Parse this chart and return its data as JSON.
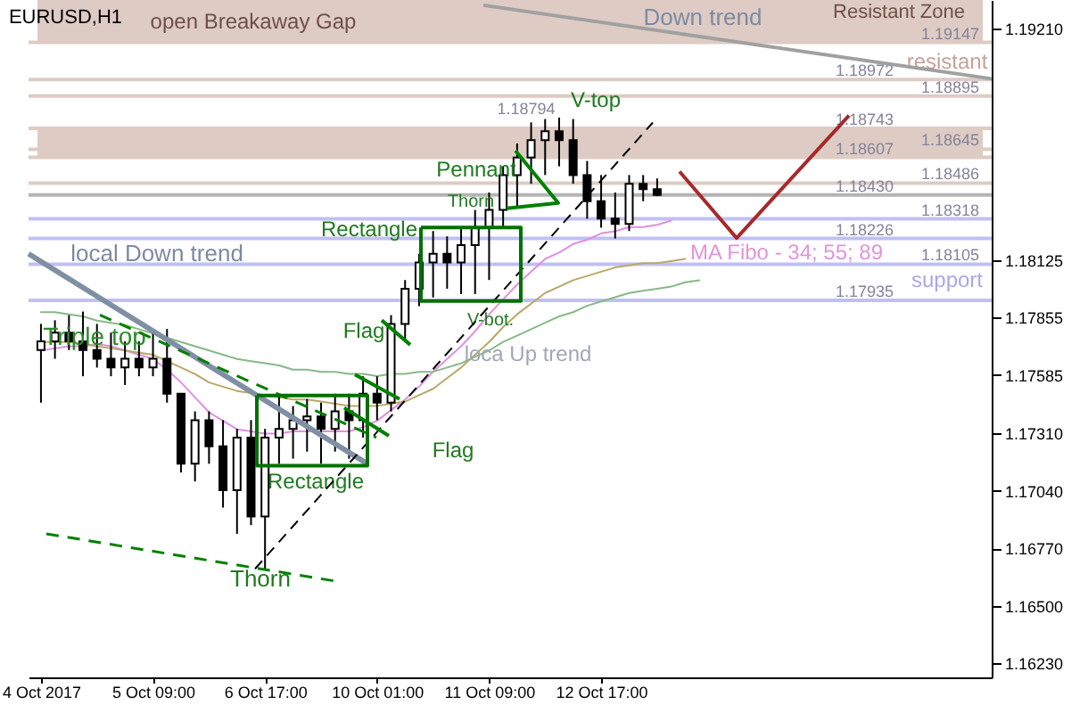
{
  "chart_data": {
    "type": "candlestick",
    "title": "EURUSD,H1",
    "color": "#000000",
    "categories": [
      "4 Oct 2017",
      null,
      null,
      null,
      null,
      null,
      null,
      null,
      "5 Oct 09:00",
      null,
      null,
      null,
      null,
      null,
      null,
      null,
      "6 Oct 17:00",
      null,
      null,
      null,
      null,
      null,
      null,
      null,
      "10 Oct 01:00",
      null,
      null,
      null,
      null,
      null,
      null,
      null,
      "11 Oct 09:00",
      null,
      null,
      null,
      null,
      null,
      null,
      null,
      "12 Oct 17:00",
      null,
      null,
      null,
      null,
      null,
      null,
      null,
      null,
      null,
      null,
      null,
      null,
      null,
      null,
      null,
      null,
      null,
      null,
      null,
      null,
      null,
      null,
      null,
      null,
      null,
      null,
      null
    ],
    "ylim": [
      1.16165,
      1.19346
    ],
    "yticks": [
      {
        "value": 1.1623,
        "label": "1.16230"
      },
      {
        "value": 1.165,
        "label": "1.16500"
      },
      {
        "value": 1.1677,
        "label": "1.16770"
      },
      {
        "value": 1.1704,
        "label": "1.17040"
      },
      {
        "value": 1.1731,
        "label": "1.17310"
      },
      {
        "value": 1.17585,
        "label": "1.17585"
      },
      {
        "value": 1.17855,
        "label": "1.17855"
      },
      {
        "value": 1.18125,
        "label": "1.18125"
      },
      {
        "value": 1.1921,
        "label": "1.19210"
      }
    ],
    "ohlc": [
      [
        1.17702,
        1.17825,
        1.17455,
        1.17743
      ],
      [
        1.17743,
        1.17842,
        1.17661,
        1.17784
      ],
      [
        1.17784,
        1.17866,
        1.17702,
        1.17743
      ],
      [
        1.17743,
        1.17883,
        1.17579,
        1.17702
      ],
      [
        1.17702,
        1.17825,
        1.1762,
        1.17661
      ],
      [
        1.17661,
        1.17784,
        1.17579,
        1.1762
      ],
      [
        1.1762,
        1.17743,
        1.17538,
        1.17661
      ],
      [
        1.17661,
        1.17743,
        1.17579,
        1.1762
      ],
      [
        1.1762,
        1.17784,
        1.17579,
        1.17661
      ],
      [
        1.17661,
        1.17801,
        1.17455,
        1.17497
      ],
      [
        1.17497,
        1.17497,
        1.17127,
        1.17168
      ],
      [
        1.17168,
        1.17414,
        1.17085,
        1.17373
      ],
      [
        1.17373,
        1.17414,
        1.17168,
        1.1725
      ],
      [
        1.1725,
        1.17373,
        1.16962,
        1.17044
      ],
      [
        1.17044,
        1.17332,
        1.16839,
        1.17291
      ],
      [
        1.17291,
        1.17373,
        1.1688,
        1.16921
      ],
      [
        1.16921,
        1.17332,
        1.16674,
        1.17291
      ],
      [
        1.17291,
        1.17497,
        1.17168,
        1.17332
      ],
      [
        1.17332,
        1.17439,
        1.17192,
        1.17373
      ],
      [
        1.17373,
        1.17472,
        1.17225,
        1.1739
      ],
      [
        1.1739,
        1.17455,
        1.17168,
        1.17332
      ],
      [
        1.17332,
        1.17497,
        1.17225,
        1.17414
      ],
      [
        1.17414,
        1.17497,
        1.17192,
        1.17373
      ],
      [
        1.17373,
        1.17579,
        1.17291,
        1.17497
      ],
      [
        1.17497,
        1.17579,
        1.17373,
        1.17455
      ],
      [
        1.17455,
        1.17866,
        1.17414,
        1.17825
      ],
      [
        1.17825,
        1.18031,
        1.17743,
        1.1799
      ],
      [
        1.1799,
        1.18154,
        1.17908,
        1.18113
      ],
      [
        1.18113,
        1.18261,
        1.17949,
        1.18154
      ],
      [
        1.18154,
        1.18236,
        1.1799,
        1.18113
      ],
      [
        1.18113,
        1.18277,
        1.17965,
        1.18195
      ],
      [
        1.18195,
        1.1836,
        1.17965,
        1.18277
      ],
      [
        1.18277,
        1.18442,
        1.18031,
        1.1836
      ],
      [
        1.1836,
        1.18565,
        1.18277,
        1.18524
      ],
      [
        1.18524,
        1.18672,
        1.18376,
        1.18606
      ],
      [
        1.18606,
        1.18771,
        1.18483,
        1.18688
      ],
      [
        1.18688,
        1.18787,
        1.18524,
        1.1873
      ],
      [
        1.1873,
        1.18794,
        1.18565,
        1.18688
      ],
      [
        1.18688,
        1.18787,
        1.18483,
        1.18524
      ],
      [
        1.18524,
        1.1859,
        1.18319,
        1.18401
      ],
      [
        1.18401,
        1.18524,
        1.18277,
        1.18319
      ],
      [
        1.18319,
        1.18442,
        1.18226,
        1.18294
      ],
      [
        1.18294,
        1.18524,
        1.18261,
        1.18483
      ],
      [
        1.18483,
        1.18524,
        1.18401,
        1.18458
      ],
      [
        1.18458,
        1.18508,
        1.18425,
        1.1843
      ],
      null,
      null,
      null,
      null,
      null,
      null,
      null,
      null,
      null,
      null,
      null,
      null,
      null,
      null,
      null,
      null,
      null,
      null,
      null,
      null,
      null,
      null,
      null
    ],
    "series": [
      {
        "type": "line",
        "color": "#e090e0",
        "values": [
          1.177,
          1.1771,
          1.1772,
          1.1772,
          1.1773,
          1.1772,
          1.177,
          1.1768,
          1.1766,
          1.1761,
          1.1755,
          1.1748,
          1.1741,
          1.1737,
          1.1733,
          1.1732,
          1.1731,
          1.1731,
          1.1732,
          1.1732,
          1.1732,
          1.1732,
          1.1732,
          1.1734,
          1.1737,
          1.1742,
          1.1747,
          1.1753,
          1.176,
          1.1766,
          1.1772,
          1.1779,
          1.1787,
          1.1794,
          1.1801,
          1.1807,
          1.1813,
          1.1816,
          1.182,
          1.1822,
          1.1825,
          1.1826,
          1.1828,
          1.1828,
          1.1829,
          1.1831,
          null,
          null,
          null,
          null,
          null,
          null,
          null,
          null,
          null,
          null,
          null,
          null,
          null,
          null,
          null,
          null,
          null,
          null,
          null,
          null,
          null,
          null
        ]
      },
      {
        "type": "line",
        "color": "#b8a868",
        "values": [
          1.1774,
          1.1774,
          1.1774,
          1.1773,
          1.1772,
          1.1771,
          1.177,
          1.1769,
          1.1768,
          1.1765,
          1.1762,
          1.1759,
          1.1755,
          1.1753,
          1.1751,
          1.175,
          1.1749,
          1.1748,
          1.1747,
          1.1747,
          1.1746,
          1.1745,
          1.1744,
          1.1744,
          1.1744,
          1.1745,
          1.1746,
          1.1749,
          1.1752,
          1.1757,
          1.1762,
          1.1768,
          1.1774,
          1.1781,
          1.1787,
          1.1792,
          1.1797,
          1.18,
          1.1803,
          1.1805,
          1.1807,
          1.1809,
          1.181,
          1.1811,
          1.1811,
          1.1812,
          1.1813,
          null,
          null,
          null,
          null,
          null,
          null,
          null,
          null,
          null,
          null,
          null,
          null,
          null,
          null,
          null,
          null,
          null,
          null,
          null,
          null,
          null
        ]
      },
      {
        "type": "line",
        "color": "#88b888",
        "values": [
          1.1788,
          1.1788,
          1.1787,
          1.1786,
          1.1784,
          1.1783,
          1.1782,
          1.178,
          1.1778,
          1.1776,
          1.1774,
          1.1772,
          1.177,
          1.1768,
          1.1766,
          1.1765,
          1.1764,
          1.1763,
          1.1761,
          1.1761,
          1.176,
          1.176,
          1.1759,
          1.1759,
          1.1758,
          1.1759,
          1.1759,
          1.176,
          1.176,
          1.1762,
          1.1764,
          1.1767,
          1.177,
          1.1774,
          1.1777,
          1.178,
          1.1783,
          1.1786,
          1.1788,
          1.1791,
          1.1793,
          1.1795,
          1.1797,
          1.1798,
          1.1799,
          1.18,
          1.1802,
          1.1803,
          null,
          null,
          null,
          null,
          null,
          null,
          null,
          null,
          null,
          null,
          null,
          null,
          null,
          null,
          null,
          null,
          null,
          null,
          null,
          null
        ]
      }
    ],
    "bands": [
      {
        "axis": "y",
        "from": 1.19147,
        "to": 1.19346,
        "color": "#ddcbc4"
      },
      {
        "axis": "y",
        "from": 1.18607,
        "to": 1.18743,
        "color": "#ddcbc4"
      }
    ],
    "ref_lines": [
      {
        "axis": "y",
        "value": 1.19147,
        "label": "1.19147",
        "color": "#ddcbc4"
      },
      {
        "axis": "y",
        "value": 1.18972,
        "label": "1.18972",
        "color": "#ddcbc4"
      },
      {
        "axis": "y",
        "value": 1.18895,
        "label": "1.18895",
        "color": "#ddcbc4"
      },
      {
        "axis": "y",
        "value": 1.18743,
        "label": "1.18743",
        "color": "#ddcbc4"
      },
      {
        "axis": "y",
        "value": 1.18645,
        "label": "1.18645",
        "color": "#ddcbc4"
      },
      {
        "axis": "y",
        "value": 1.18607,
        "label": "1.18607",
        "color": "#ddcbc4"
      },
      {
        "axis": "y",
        "value": 1.18486,
        "label": "1.18486",
        "color": "#ddcbc4"
      },
      {
        "axis": "y",
        "value": 1.1843,
        "label": "1.18430",
        "color": "#b4b4b4"
      },
      {
        "axis": "y",
        "value": 1.18318,
        "label": "1.18318",
        "color": "#c0c0f4"
      },
      {
        "axis": "y",
        "value": 1.18226,
        "label": "1.18226",
        "color": "#c0c0f4"
      },
      {
        "axis": "y",
        "value": 1.18105,
        "label": "1.18105",
        "color": "#c0c0f4"
      },
      {
        "axis": "y",
        "value": 1.17935,
        "label": "1.17935",
        "color": "#c0c0f4"
      }
    ],
    "annotations": [
      "open Breakaway Gap",
      "Down trend",
      "Resistant Zone",
      "resistant",
      "support",
      "MA Fibo - 34; 55; 89",
      "Triple top",
      "local Down trend",
      "Rectangle",
      "Thorn",
      "Flag",
      "Flag",
      "Rectangle",
      "Thorn",
      "Pennant",
      "V-bot.",
      "loca Up trend",
      "V-top",
      "1.18794"
    ]
  }
}
